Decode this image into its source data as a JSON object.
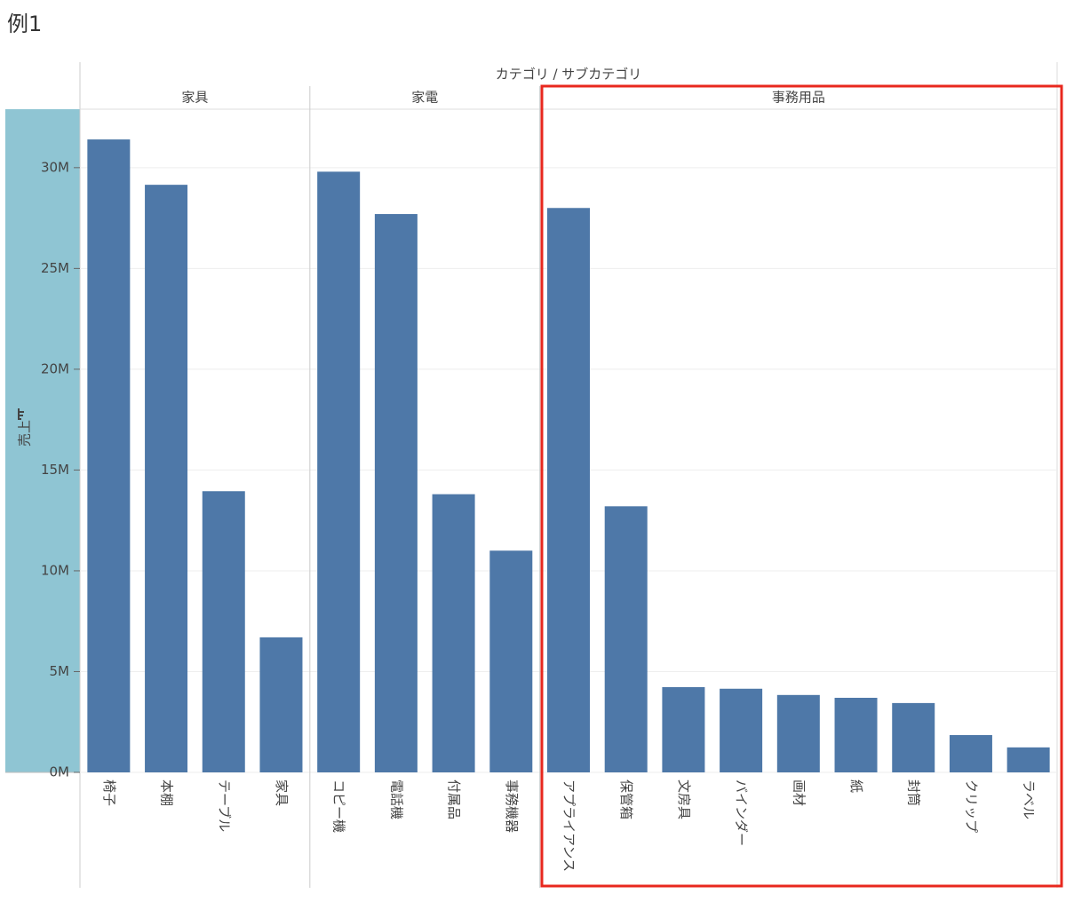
{
  "title": "例1",
  "chart_data": {
    "type": "bar",
    "x_label": "カテゴリ / サブカテゴリ",
    "y_label": "売上",
    "color": "#4e78a8",
    "groups": [
      {
        "name": "家具",
        "categories": [
          "椅子",
          "本棚",
          "テーブル",
          "家具"
        ],
        "values": [
          31400000,
          29150000,
          13950000,
          6700000
        ]
      },
      {
        "name": "家電",
        "categories": [
          "コピー機",
          "電話機",
          "付属品",
          "事務機器"
        ],
        "values": [
          29800000,
          27700000,
          13800000,
          11000000
        ]
      },
      {
        "name": "事務用品",
        "categories": [
          "アプライアンス",
          "保管箱",
          "文房具",
          "バインダー",
          "画材",
          "紙",
          "封筒",
          "クリップ",
          "ラベル"
        ],
        "values": [
          28000000,
          13200000,
          4230000,
          4150000,
          3840000,
          3700000,
          3440000,
          1850000,
          1240000
        ]
      }
    ],
    "ylim": [
      0,
      32900000
    ],
    "yticks": [
      {
        "value": 0,
        "label": "0M"
      },
      {
        "value": 5000000,
        "label": "5M"
      },
      {
        "value": 10000000,
        "label": "10M"
      },
      {
        "value": 15000000,
        "label": "15M"
      },
      {
        "value": 20000000,
        "label": "20M"
      },
      {
        "value": 25000000,
        "label": "25M"
      },
      {
        "value": 30000000,
        "label": "30M"
      }
    ],
    "grid": true
  }
}
